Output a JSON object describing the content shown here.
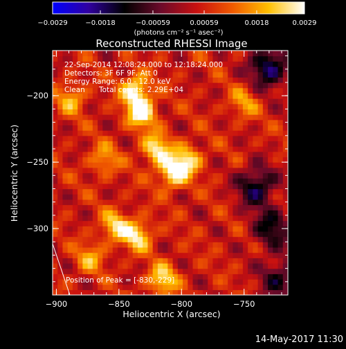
{
  "chart_data": {
    "type": "heatmap",
    "title": "Reconstructed RHESSI Image",
    "xlabel": "Heliocentric X (arcsec)",
    "ylabel": "Heliocentric Y (arcsec)",
    "xlim": [
      -903,
      -715
    ],
    "ylim": [
      -350,
      -166
    ],
    "x_ticks": [
      -900,
      -850,
      -800,
      -750
    ],
    "y_ticks": [
      -200,
      -250,
      -300
    ],
    "x_tick_labels": [
      "−900",
      "−850",
      "−800",
      "−750"
    ],
    "y_tick_labels": [
      "−200",
      "−250",
      "−300"
    ],
    "colorbar": {
      "range": [
        -0.0029,
        0.0029
      ],
      "ticks": [
        -0.0029,
        -0.0018,
        -0.00059,
        0.00059,
        0.0018,
        0.0029
      ],
      "tick_labels": [
        "−0.0029",
        "−0.0018",
        "−0.00059",
        "0.00059",
        "0.0018",
        "0.0029"
      ],
      "units_label": "(photons cm⁻² s⁻¹ asec⁻²)",
      "colormap": [
        "#0000ff",
        "#3000a0",
        "#000000",
        "#6b0a2a",
        "#c81010",
        "#f05a00",
        "#ffc000",
        "#ffffff"
      ]
    },
    "info": {
      "time": "22-Sep-2014 12:08:24.000 to 12:18:24.000",
      "detectors": "Detectors: 3F 6F 9F, Att 0",
      "energy": "Energy Range: 6.0 - 12.0 keV",
      "clean": "Clean",
      "total_counts": "Total counts: 2.29E+04"
    },
    "peak_label": "Position of Peak = [-830,-229]",
    "peak": {
      "x": -830,
      "y": -229
    },
    "bright_sources": [
      {
        "x": -832,
        "y": -212,
        "peak": 1.0
      },
      {
        "x": -837,
        "y": -195,
        "peak": 0.85
      },
      {
        "x": -820,
        "y": -240,
        "peak": 0.82
      },
      {
        "x": -807,
        "y": -258,
        "peak": 0.88
      },
      {
        "x": -795,
        "y": -248,
        "peak": 0.72
      },
      {
        "x": -853,
        "y": -298,
        "peak": 0.68
      },
      {
        "x": -835,
        "y": -305,
        "peak": 0.78
      },
      {
        "x": -815,
        "y": -338,
        "peak": 0.75
      },
      {
        "x": -888,
        "y": -202,
        "peak": 0.55
      },
      {
        "x": -862,
        "y": -248,
        "peak": 0.5
      },
      {
        "x": -873,
        "y": -322,
        "peak": 0.5
      },
      {
        "x": -750,
        "y": -205,
        "peak": 0.45
      }
    ],
    "negative_regions": [
      {
        "x": -730,
        "y": -178,
        "depth": -0.7
      },
      {
        "x": -740,
        "y": -268,
        "depth": -0.6
      },
      {
        "x": -728,
        "y": -300,
        "depth": -0.5
      },
      {
        "x": -722,
        "y": -337,
        "depth": -0.45
      }
    ]
  },
  "footer": {
    "date": "14-May-2017 11:30"
  },
  "colors": {
    "background": "#000000",
    "text": "#ffffff"
  }
}
